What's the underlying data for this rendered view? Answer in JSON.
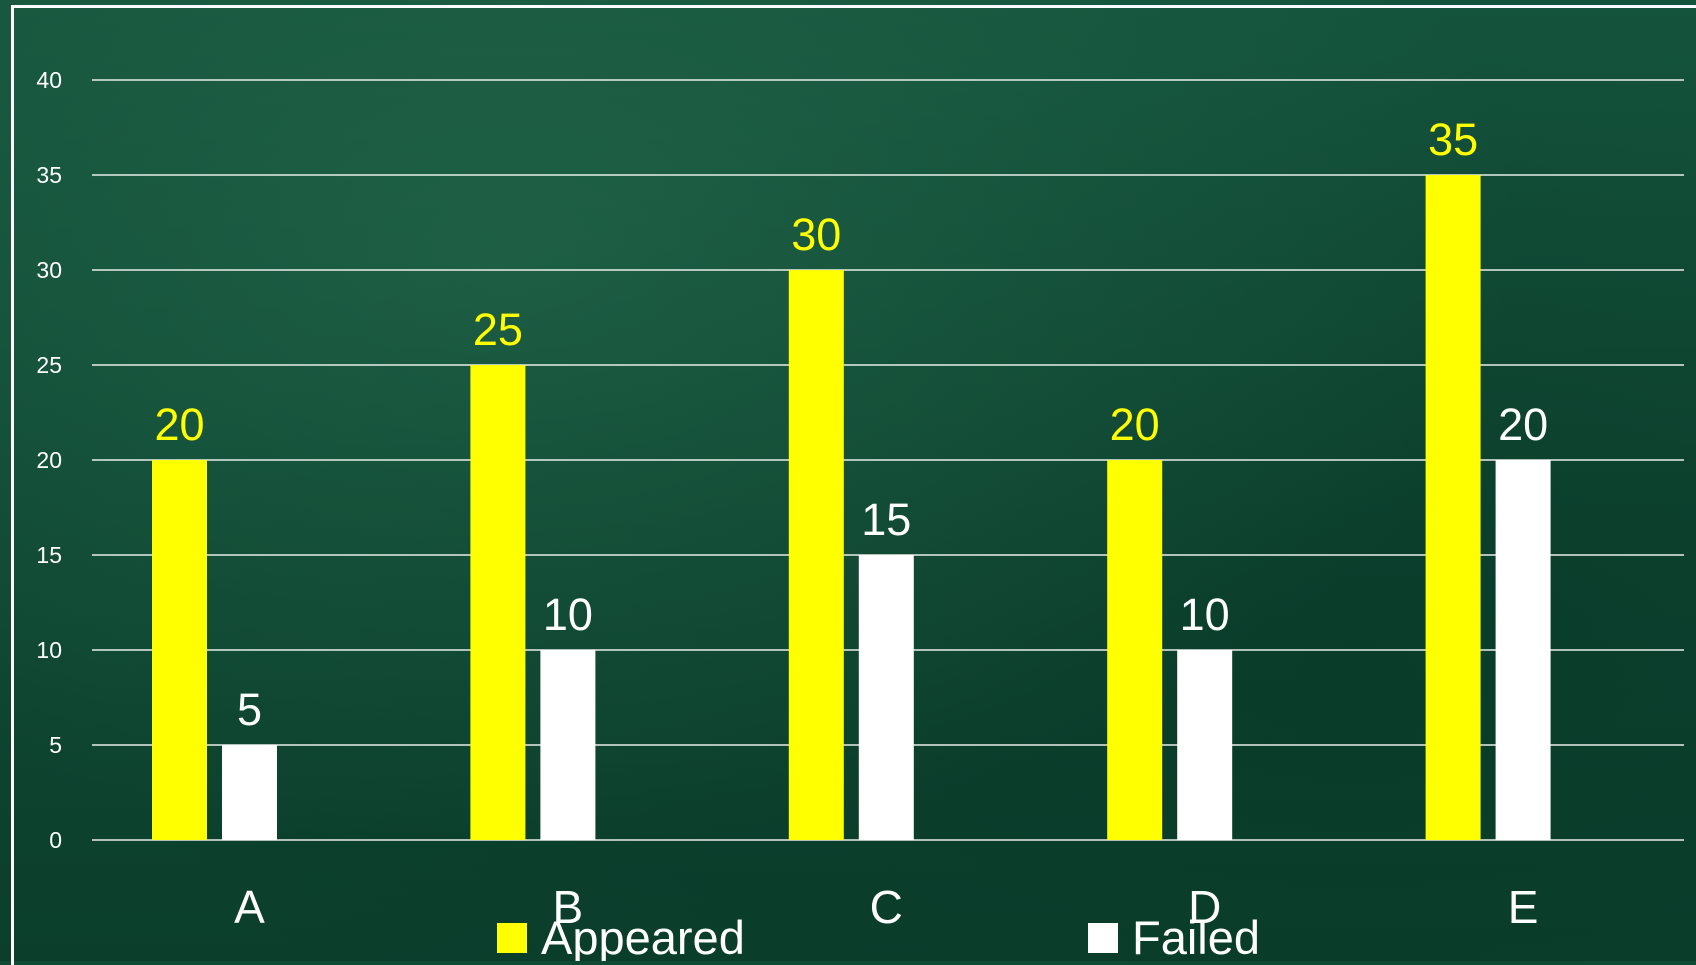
{
  "chart_data": {
    "type": "bar",
    "title": "",
    "xlabel": "",
    "ylabel": "",
    "categories": [
      "A",
      "B",
      "C",
      "D",
      "E"
    ],
    "series": [
      {
        "name": "Appeared",
        "values": [
          20,
          25,
          30,
          20,
          35
        ],
        "color": "#ffff00"
      },
      {
        "name": "Failed",
        "values": [
          5,
          10,
          15,
          10,
          20
        ],
        "color": "#ffffff"
      }
    ],
    "ylim": [
      0,
      40
    ],
    "yticks": [
      0,
      5,
      10,
      15,
      20,
      25,
      30,
      35,
      40
    ],
    "grid": true,
    "legend": "bottom"
  }
}
